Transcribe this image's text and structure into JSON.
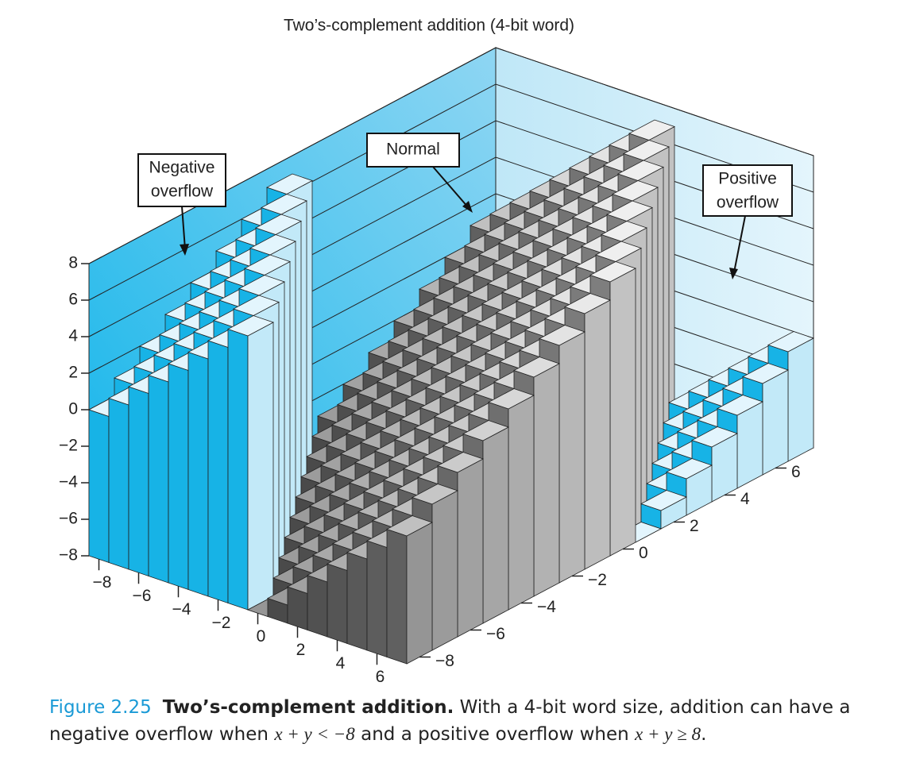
{
  "chart_data": {
    "type": "bar3d",
    "title": "Two’s-complement addition (4-bit word)",
    "x": [
      -8,
      -7,
      -6,
      -5,
      -4,
      -3,
      -2,
      -1,
      0,
      1,
      2,
      3,
      4,
      5,
      6,
      7
    ],
    "y": [
      -8,
      -7,
      -6,
      -5,
      -4,
      -3,
      -2,
      -1,
      0,
      1,
      2,
      3,
      4,
      5,
      6,
      7
    ],
    "z": [
      [
        0,
        1,
        2,
        3,
        4,
        5,
        6,
        7,
        -8,
        -7,
        -6,
        -5,
        -4,
        -3,
        -2,
        -1
      ],
      [
        1,
        2,
        3,
        4,
        5,
        6,
        7,
        -8,
        -7,
        -6,
        -5,
        -4,
        -3,
        -2,
        -1,
        0
      ],
      [
        2,
        3,
        4,
        5,
        6,
        7,
        -8,
        -7,
        -6,
        -5,
        -4,
        -3,
        -2,
        -1,
        0,
        1
      ],
      [
        3,
        4,
        5,
        6,
        7,
        -8,
        -7,
        -6,
        -5,
        -4,
        -3,
        -2,
        -1,
        0,
        1,
        2
      ],
      [
        4,
        5,
        6,
        7,
        -8,
        -7,
        -6,
        -5,
        -4,
        -3,
        -2,
        -1,
        0,
        1,
        2,
        3
      ],
      [
        5,
        6,
        7,
        -8,
        -7,
        -6,
        -5,
        -4,
        -3,
        -2,
        -1,
        0,
        1,
        2,
        3,
        4
      ],
      [
        6,
        7,
        -8,
        -7,
        -6,
        -5,
        -4,
        -3,
        -2,
        -1,
        0,
        1,
        2,
        3,
        4,
        5
      ],
      [
        7,
        -8,
        -7,
        -6,
        -5,
        -4,
        -3,
        -2,
        -1,
        0,
        1,
        2,
        3,
        4,
        5,
        6
      ],
      [
        -8,
        -7,
        -6,
        -5,
        -4,
        -3,
        -2,
        -1,
        0,
        1,
        2,
        3,
        4,
        5,
        6,
        7
      ],
      [
        -7,
        -6,
        -5,
        -4,
        -3,
        -2,
        -1,
        0,
        1,
        2,
        3,
        4,
        5,
        6,
        7,
        -8
      ],
      [
        -6,
        -5,
        -4,
        -3,
        -2,
        -1,
        0,
        1,
        2,
        3,
        4,
        5,
        6,
        7,
        -8,
        -7
      ],
      [
        -5,
        -4,
        -3,
        -2,
        -1,
        0,
        1,
        2,
        3,
        4,
        5,
        6,
        7,
        -8,
        -7,
        -6
      ],
      [
        -4,
        -3,
        -2,
        -1,
        0,
        1,
        2,
        3,
        4,
        5,
        6,
        7,
        -8,
        -7,
        -6,
        -5
      ],
      [
        -3,
        -2,
        -1,
        0,
        1,
        2,
        3,
        4,
        5,
        6,
        7,
        -8,
        -7,
        -6,
        -5,
        -4
      ],
      [
        -2,
        -1,
        0,
        1,
        2,
        3,
        4,
        5,
        6,
        7,
        -8,
        -7,
        -6,
        -5,
        -4,
        -3
      ],
      [
        -1,
        0,
        1,
        2,
        3,
        4,
        5,
        6,
        7,
        -8,
        -7,
        -6,
        -5,
        -4,
        -3,
        -2
      ]
    ],
    "xlim": [
      -8,
      8
    ],
    "ylim": [
      -8,
      8
    ],
    "zlim": [
      -8,
      8
    ],
    "xticks": [
      {
        "value": -8,
        "label": "−8"
      },
      {
        "value": -6,
        "label": "−6"
      },
      {
        "value": -4,
        "label": "−4"
      },
      {
        "value": -2,
        "label": "−2"
      },
      0,
      2,
      4,
      6
    ],
    "yticks": [
      {
        "value": -8,
        "label": "−8"
      },
      {
        "value": -6,
        "label": "−6"
      },
      {
        "value": -4,
        "label": "−4"
      },
      {
        "value": -2,
        "label": "−2"
      },
      0,
      2,
      4,
      6
    ],
    "zticks": [
      {
        "value": -8,
        "label": "−8"
      },
      {
        "value": -6,
        "label": "−6"
      },
      {
        "value": -4,
        "label": "−4"
      },
      {
        "value": -2,
        "label": "−2"
      },
      0,
      2,
      4,
      6,
      8
    ],
    "annotations": [
      [
        "Negative",
        "overflow"
      ],
      [
        "Normal"
      ],
      [
        "Positive",
        "overflow"
      ]
    ]
  },
  "caption": {
    "figure": "Figure 2.25",
    "heading": "Two’s-complement addition.",
    "parts": [
      "With a 4-bit word size, addition can have a negative overflow when ",
      "x + y < −8",
      " and a positive overflow when ",
      "x + y ≥ 8",
      "."
    ]
  }
}
